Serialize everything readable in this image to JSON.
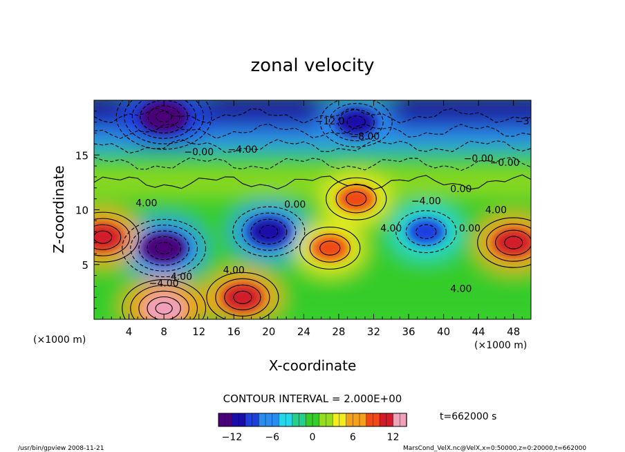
{
  "chart_data": {
    "type": "heatmap",
    "title": "zonal velocity",
    "xlabel": "X-coordinate",
    "ylabel": "Z-coordinate",
    "x_unit": "(×1000 m)",
    "y_unit": "(×1000 m)",
    "xlim": [
      0,
      50
    ],
    "ylim": [
      0,
      20
    ],
    "x_ticks": [
      "4",
      "8",
      "12",
      "16",
      "20",
      "24",
      "28",
      "32",
      "36",
      "40",
      "44",
      "48"
    ],
    "y_ticks": [
      "5",
      "10",
      "15"
    ],
    "contour_interval_text": "CONTOUR INTERVAL = 2.000E+00",
    "time_label": "t=662000 s",
    "colorbar": {
      "range": [
        -14,
        14
      ],
      "ticks": [
        "−12",
        "−6",
        "0",
        "6",
        "12"
      ],
      "colors": [
        "#4b007a",
        "#1a0ea8",
        "#1f3ee0",
        "#2a8cf0",
        "#22d8e8",
        "#25d08a",
        "#36cc2a",
        "#98dc1e",
        "#f2ee1e",
        "#f5a01a",
        "#ee4a18",
        "#d21a2a",
        "#f0a0b8"
      ]
    },
    "contour_labels": [
      "−12.0",
      "−8.00",
      "−4.00",
      "−0.00",
      "4.00",
      "0.00",
      "−4.00",
      "4.00",
      "0.00",
      "4.00",
      "−0.00",
      "0.00",
      "−4.00",
      "4.00",
      "−0.00",
      "4.00",
      "4.00",
      "−3"
    ],
    "features": [
      {
        "x": 8,
        "z": 6.5,
        "value": -12
      },
      {
        "x": 20,
        "z": 8,
        "value": -10
      },
      {
        "x": 38,
        "z": 8,
        "value": -8
      },
      {
        "x": 1,
        "z": 7.5,
        "value": 10
      },
      {
        "x": 48,
        "z": 7,
        "value": 10
      },
      {
        "x": 27,
        "z": 6.5,
        "value": 8
      },
      {
        "x": 8,
        "z": 1,
        "value": 12
      },
      {
        "x": 17,
        "z": 2,
        "value": 10
      },
      {
        "x": 30,
        "z": 11,
        "value": 8
      },
      {
        "x": 8,
        "z": 18.5,
        "value": -14
      },
      {
        "x": 30,
        "z": 18,
        "value": -10
      }
    ]
  },
  "footer": {
    "left": "/usr/bin/gpview   2008-11-21",
    "right": "MarsCond_VelX.nc@VelX,x=0:50000,z=0:20000,t=662000"
  }
}
